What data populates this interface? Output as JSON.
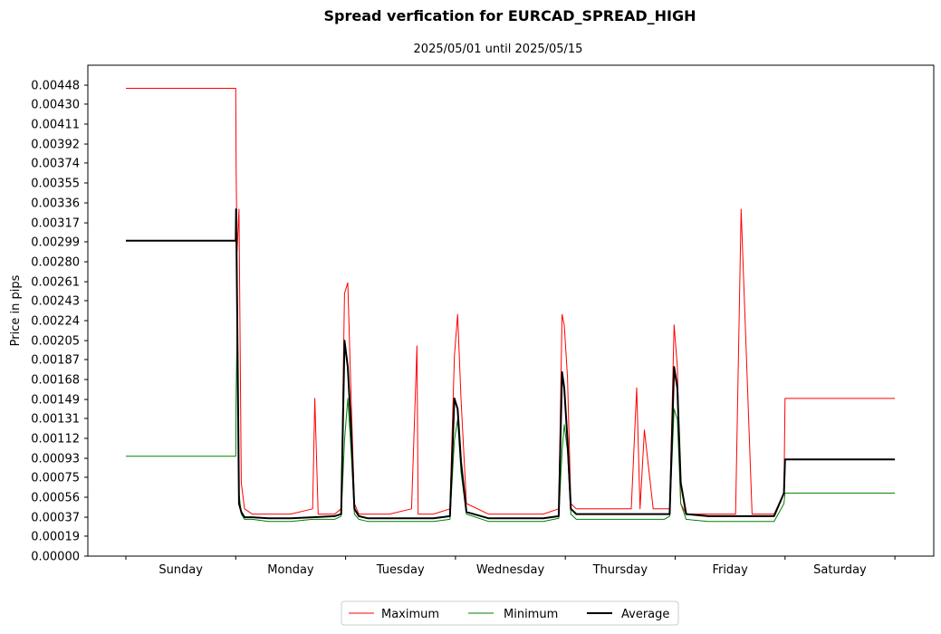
{
  "chart_data": {
    "type": "line",
    "title": "Spread verfication for EURCAD_SPREAD_HIGH",
    "subtitle": "2025/05/01 until 2025/05/15",
    "ylabel": "Price in pips",
    "xlabel": "",
    "categories": [
      "Sunday",
      "Monday",
      "Tuesday",
      "Wednesday",
      "Thursday",
      "Friday",
      "Saturday"
    ],
    "x_range": [
      0,
      7
    ],
    "ylim": [
      0,
      0.00467
    ],
    "y_ticks": [
      "0.00000",
      "0.00019",
      "0.00037",
      "0.00056",
      "0.00075",
      "0.00093",
      "0.00112",
      "0.00131",
      "0.00149",
      "0.00168",
      "0.00187",
      "0.00205",
      "0.00224",
      "0.00243",
      "0.00261",
      "0.00280",
      "0.00299",
      "0.00317",
      "0.00336",
      "0.00355",
      "0.00374",
      "0.00392",
      "0.00411",
      "0.00430",
      "0.00448"
    ],
    "grid": false,
    "legend_position": "bottom-center",
    "series": [
      {
        "name": "Maximum",
        "color": "#ff0000",
        "stroke": 1,
        "x": [
          0,
          1.0,
          1.003,
          1.012,
          1.03,
          1.05,
          1.08,
          1.15,
          1.3,
          1.5,
          1.7,
          1.72,
          1.75,
          1.9,
          1.96,
          1.99,
          2.02,
          2.05,
          2.08,
          2.12,
          2.2,
          2.4,
          2.6,
          2.65,
          2.66,
          2.8,
          2.95,
          2.99,
          3.02,
          3.05,
          3.1,
          3.3,
          3.5,
          3.65,
          3.7,
          3.8,
          3.94,
          3.97,
          3.99,
          4.02,
          4.05,
          4.1,
          4.3,
          4.5,
          4.6,
          4.65,
          4.68,
          4.72,
          4.8,
          4.95,
          4.99,
          5.02,
          5.05,
          5.1,
          5.3,
          5.5,
          5.55,
          5.6,
          5.7,
          5.9,
          5.99,
          6.0,
          7.0
        ],
        "y": [
          0.00445,
          0.00445,
          0.0037,
          0.0029,
          0.0033,
          0.0007,
          0.00045,
          0.0004,
          0.0004,
          0.0004,
          0.00045,
          0.0015,
          0.0004,
          0.0004,
          0.00045,
          0.0025,
          0.0026,
          0.0015,
          0.0005,
          0.0004,
          0.0004,
          0.0004,
          0.00045,
          0.002,
          0.0004,
          0.0004,
          0.00045,
          0.0019,
          0.0023,
          0.0015,
          0.0005,
          0.0004,
          0.0004,
          0.0004,
          0.0004,
          0.0004,
          0.00045,
          0.0023,
          0.0022,
          0.0017,
          0.0005,
          0.00045,
          0.00045,
          0.00045,
          0.00045,
          0.0016,
          0.00045,
          0.0012,
          0.00045,
          0.00045,
          0.0022,
          0.0018,
          0.0005,
          0.0004,
          0.0004,
          0.0004,
          0.0004,
          0.0033,
          0.0004,
          0.0004,
          0.0006,
          0.0015,
          0.0015
        ]
      },
      {
        "name": "Minimum",
        "color": "#008000",
        "stroke": 1,
        "x": [
          0,
          1.0,
          1.003,
          1.012,
          1.03,
          1.05,
          1.08,
          1.15,
          1.3,
          1.5,
          1.7,
          1.9,
          1.96,
          1.99,
          2.02,
          2.05,
          2.08,
          2.12,
          2.2,
          2.4,
          2.6,
          2.8,
          2.95,
          2.99,
          3.02,
          3.05,
          3.1,
          3.3,
          3.5,
          3.7,
          3.8,
          3.94,
          3.97,
          3.99,
          4.02,
          4.05,
          4.1,
          4.3,
          4.5,
          4.7,
          4.9,
          4.95,
          4.99,
          5.02,
          5.05,
          5.1,
          5.3,
          5.5,
          5.7,
          5.9,
          5.99,
          6.0,
          7.0
        ],
        "y": [
          0.00095,
          0.00095,
          0.0015,
          0.0022,
          0.0006,
          0.0004,
          0.00035,
          0.00035,
          0.00033,
          0.00033,
          0.00035,
          0.00035,
          0.00038,
          0.0011,
          0.0015,
          0.001,
          0.0004,
          0.00035,
          0.00033,
          0.00033,
          0.00033,
          0.00033,
          0.00035,
          0.0011,
          0.0013,
          0.0008,
          0.0004,
          0.00033,
          0.00033,
          0.00033,
          0.00033,
          0.00036,
          0.001,
          0.00125,
          0.001,
          0.0004,
          0.00035,
          0.00035,
          0.00035,
          0.00035,
          0.00035,
          0.00038,
          0.0014,
          0.0013,
          0.0005,
          0.00035,
          0.00033,
          0.00033,
          0.00033,
          0.00033,
          0.0005,
          0.0006,
          0.0006
        ]
      },
      {
        "name": "Average",
        "color": "#000000",
        "stroke": 2,
        "x": [
          0,
          1.0,
          1.003,
          1.012,
          1.03,
          1.05,
          1.08,
          1.15,
          1.3,
          1.5,
          1.7,
          1.9,
          1.96,
          1.99,
          2.02,
          2.05,
          2.08,
          2.12,
          2.2,
          2.4,
          2.6,
          2.8,
          2.95,
          2.99,
          3.02,
          3.05,
          3.1,
          3.3,
          3.5,
          3.7,
          3.8,
          3.94,
          3.97,
          3.99,
          4.02,
          4.05,
          4.1,
          4.3,
          4.5,
          4.7,
          4.9,
          4.95,
          4.99,
          5.02,
          5.05,
          5.1,
          5.3,
          5.5,
          5.7,
          5.9,
          5.99,
          6.0,
          7.0
        ],
        "y": [
          0.003,
          0.003,
          0.0033,
          0.0024,
          0.0005,
          0.00042,
          0.00037,
          0.00037,
          0.00036,
          0.00036,
          0.00037,
          0.00038,
          0.0004,
          0.00205,
          0.0018,
          0.0012,
          0.00045,
          0.00038,
          0.00036,
          0.00036,
          0.00036,
          0.00036,
          0.00038,
          0.0015,
          0.0014,
          0.0009,
          0.00042,
          0.00036,
          0.00036,
          0.00036,
          0.00036,
          0.00038,
          0.00175,
          0.0016,
          0.0011,
          0.00045,
          0.0004,
          0.0004,
          0.0004,
          0.0004,
          0.0004,
          0.0004,
          0.0018,
          0.0016,
          0.0007,
          0.0004,
          0.00038,
          0.00038,
          0.00038,
          0.00038,
          0.0006,
          0.00092,
          0.00092
        ]
      }
    ]
  }
}
